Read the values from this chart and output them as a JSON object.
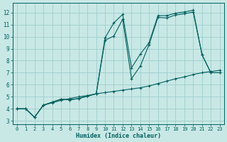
{
  "xlabel": "Humidex (Indice chaleur)",
  "bg_color": "#c8e8e5",
  "grid_color": "#9dcece",
  "line_color": "#005f5f",
  "xlim": [
    -0.5,
    23.5
  ],
  "ylim": [
    2.7,
    12.8
  ],
  "xticks": [
    0,
    1,
    2,
    3,
    4,
    5,
    6,
    7,
    8,
    9,
    10,
    11,
    12,
    13,
    14,
    15,
    16,
    17,
    18,
    19,
    20,
    21,
    22,
    23
  ],
  "yticks": [
    3,
    4,
    5,
    6,
    7,
    8,
    9,
    10,
    11,
    12
  ],
  "line_bottom_x": [
    0,
    1,
    2,
    3,
    4,
    5,
    6,
    7,
    8,
    9,
    10,
    11,
    12,
    13,
    14,
    15,
    16,
    17,
    18,
    19,
    20,
    21,
    22,
    23
  ],
  "line_bottom_y": [
    4.0,
    4.0,
    3.3,
    4.3,
    4.5,
    4.7,
    4.85,
    5.0,
    5.1,
    5.25,
    5.35,
    5.45,
    5.55,
    5.65,
    5.75,
    5.9,
    6.1,
    6.3,
    6.5,
    6.65,
    6.85,
    7.0,
    7.1,
    7.2
  ],
  "line_upper_x": [
    0,
    1,
    2,
    3,
    4,
    5,
    6,
    7,
    8,
    9,
    10,
    11,
    12,
    13,
    14,
    15,
    16,
    17,
    18,
    19,
    20,
    21,
    22,
    23
  ],
  "line_upper_y": [
    4.0,
    4.0,
    3.3,
    4.3,
    4.55,
    4.8,
    4.75,
    4.85,
    5.05,
    5.25,
    9.9,
    11.15,
    11.85,
    7.4,
    8.55,
    9.5,
    11.75,
    11.75,
    11.95,
    12.05,
    12.2,
    8.5,
    7.0,
    7.0
  ],
  "line_mid_x": [
    0,
    1,
    2,
    3,
    4,
    5,
    6,
    7,
    8,
    9,
    10,
    11,
    12,
    13,
    14,
    15,
    16,
    17,
    18,
    19,
    20,
    21,
    22,
    23
  ],
  "line_mid_y": [
    4.0,
    4.0,
    3.3,
    4.3,
    4.55,
    4.8,
    4.75,
    4.85,
    5.05,
    5.25,
    9.7,
    10.05,
    11.45,
    6.5,
    7.55,
    9.35,
    11.6,
    11.55,
    11.8,
    11.9,
    12.05,
    8.5,
    7.0,
    7.0
  ]
}
